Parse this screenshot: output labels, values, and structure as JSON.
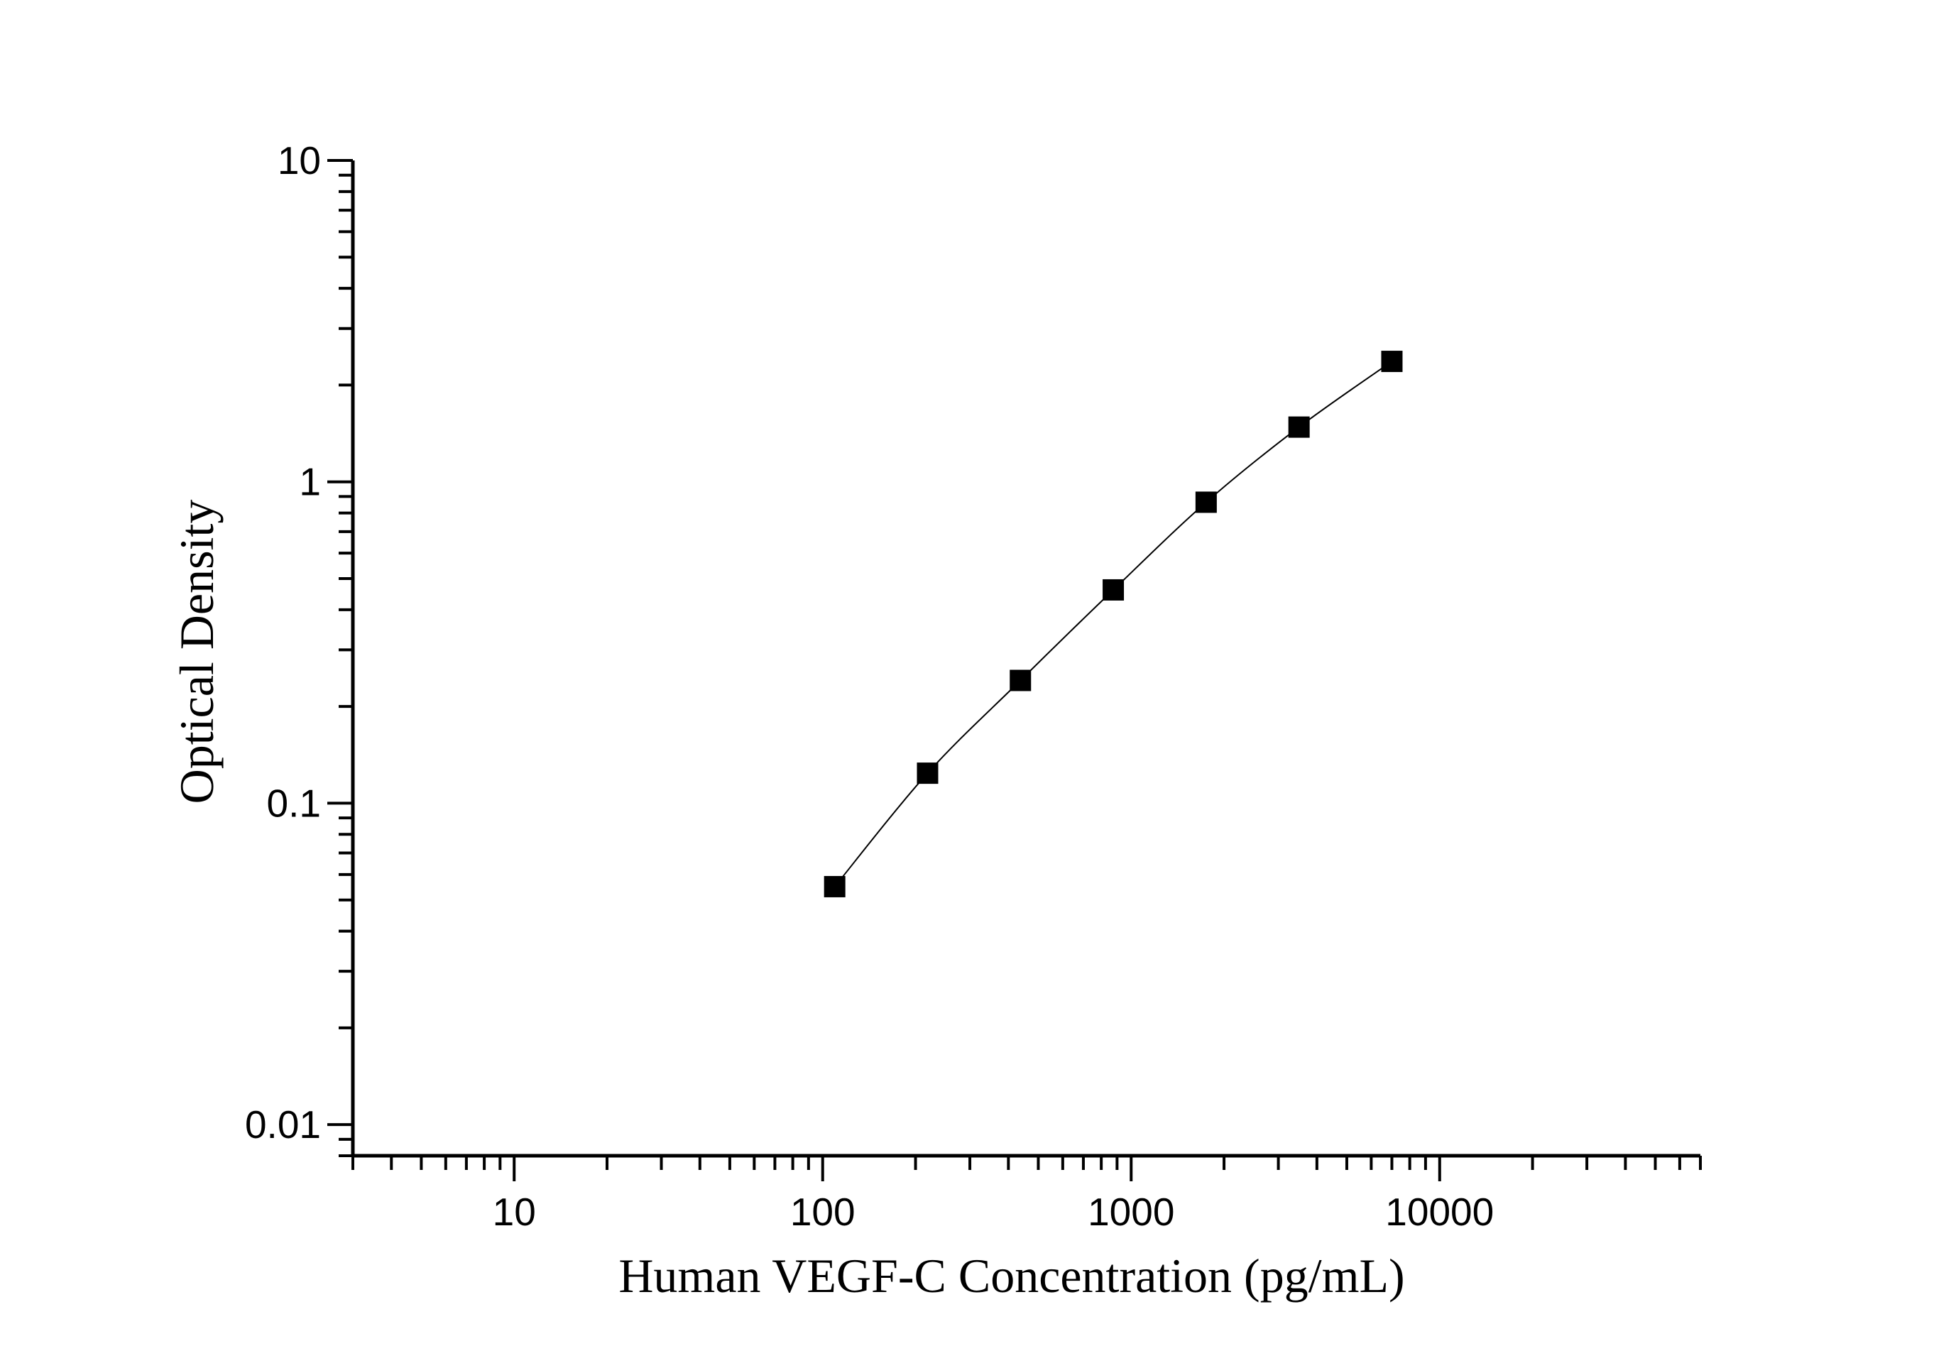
{
  "chart_data": {
    "type": "scatter",
    "title": "",
    "xlabel": "Human VEGF-C Concentration (pg/mL)",
    "ylabel": "Optical Density",
    "x_scale": "log",
    "y_scale": "log",
    "xlim": [
      3,
      70000
    ],
    "ylim": [
      0.008,
      10
    ],
    "x_ticks": [
      {
        "value": 10,
        "label": "10"
      },
      {
        "value": 100,
        "label": "100"
      },
      {
        "value": 1000,
        "label": "1000"
      },
      {
        "value": 10000,
        "label": "10000"
      }
    ],
    "y_ticks": [
      {
        "value": 0.01,
        "label": "0.01"
      },
      {
        "value": 0.1,
        "label": "0.1"
      },
      {
        "value": 1,
        "label": "1"
      },
      {
        "value": 10,
        "label": "10"
      }
    ],
    "grid": false,
    "legend": "none",
    "marker": "square",
    "color": "#000000",
    "series": [
      {
        "x": [
          109.4,
          218.8,
          437.5,
          875,
          1750,
          3500,
          7000
        ],
        "y": [
          0.055,
          0.124,
          0.241,
          0.461,
          0.864,
          1.48,
          2.37
        ]
      }
    ]
  }
}
